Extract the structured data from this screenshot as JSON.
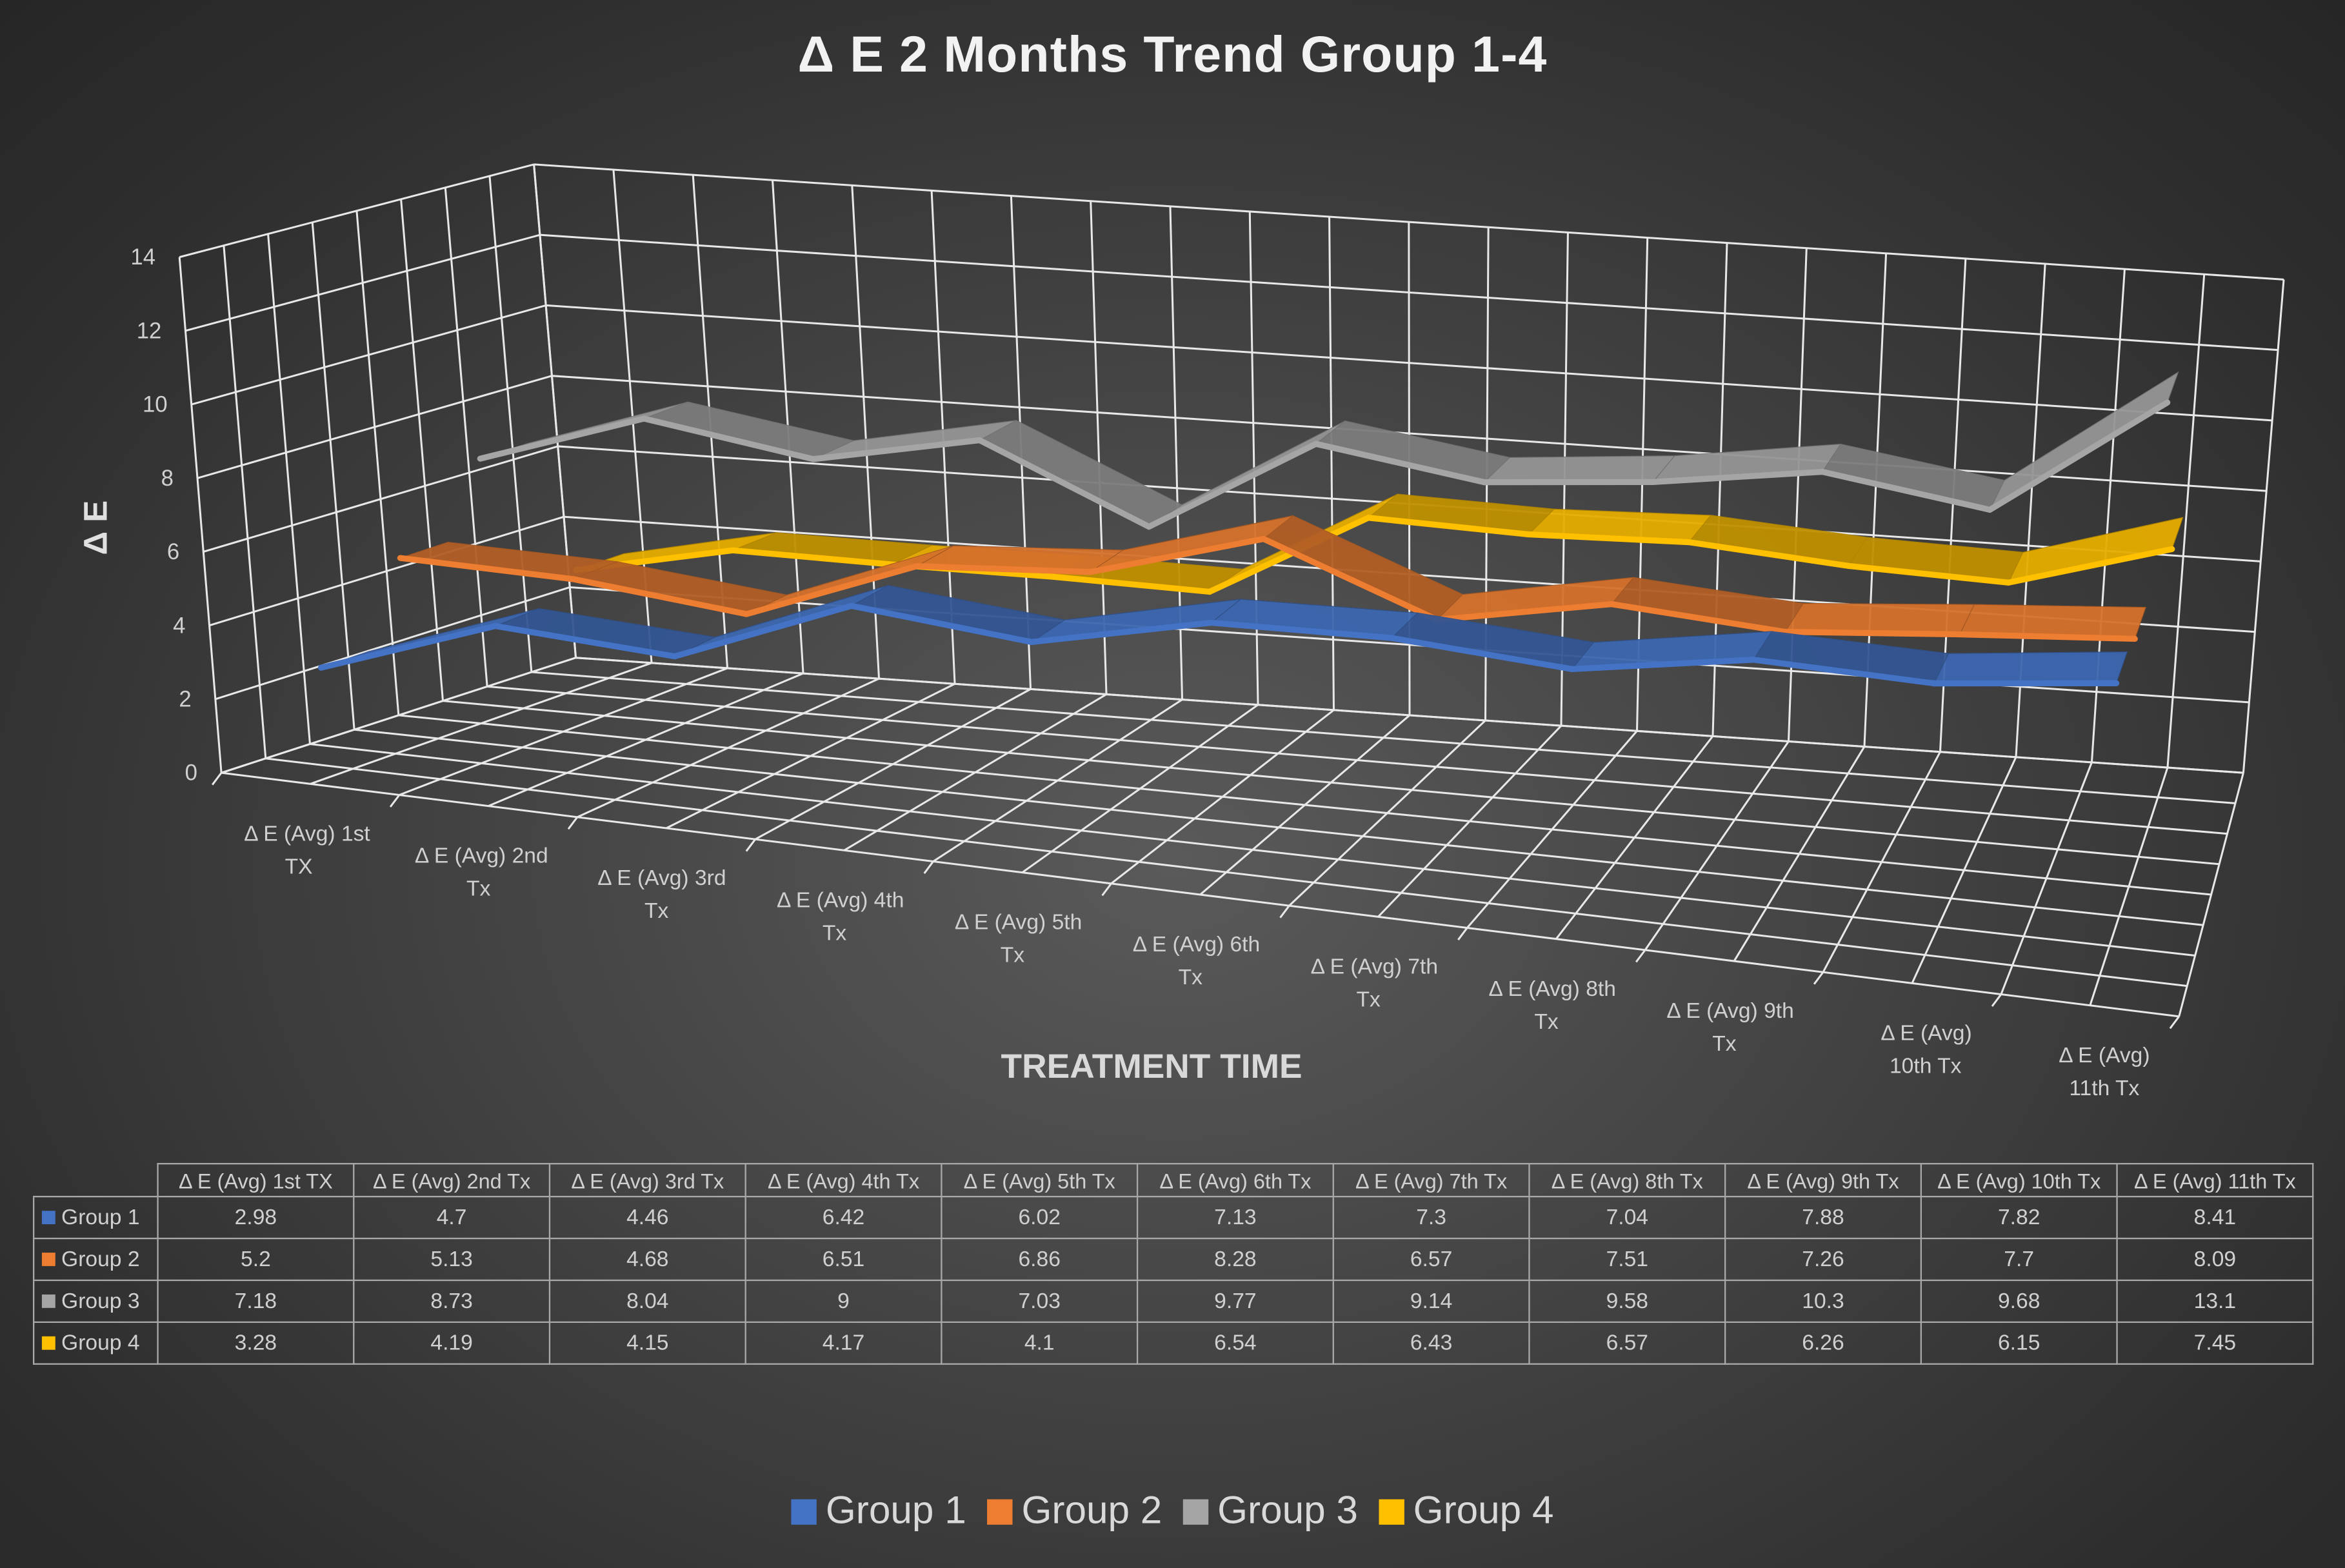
{
  "chart_data": {
    "type": "line",
    "subtype": "3d-line",
    "title": "Δ E 2 Months Trend Group 1-4",
    "xlabel": "TREATMENT TIME",
    "ylabel": "Δ E",
    "ylim": [
      0,
      14
    ],
    "yticks": [
      "0",
      "2",
      "4",
      "6",
      "8",
      "10",
      "12",
      "14"
    ],
    "grid": true,
    "legend_position": "bottom",
    "categories": [
      "Δ E (Avg) 1st  TX",
      "Δ E (Avg) 2nd Tx",
      "Δ E (Avg) 3rd Tx",
      "Δ E (Avg) 4th Tx",
      "Δ E (Avg) 5th Tx",
      "Δ E (Avg) 6th Tx",
      "Δ E (Avg) 7th Tx",
      "Δ E (Avg) 8th Tx",
      "Δ E (Avg) 9th Tx",
      "Δ E (Avg) 10th Tx",
      "Δ E (Avg) 11th Tx"
    ],
    "axis_labels": [
      [
        "Δ E (Avg) 1st",
        "TX"
      ],
      [
        "Δ E (Avg) 2nd",
        "Tx"
      ],
      [
        "Δ E (Avg) 3rd",
        "Tx"
      ],
      [
        "Δ E (Avg) 4th",
        "Tx"
      ],
      [
        "Δ E (Avg) 5th",
        "Tx"
      ],
      [
        "Δ E (Avg) 6th",
        "Tx"
      ],
      [
        "Δ E (Avg) 7th",
        "Tx"
      ],
      [
        "Δ E (Avg) 8th",
        "Tx"
      ],
      [
        "Δ E (Avg) 9th",
        "Tx"
      ],
      [
        "Δ E (Avg)",
        "10th Tx"
      ],
      [
        "Δ E (Avg)",
        "11th Tx"
      ]
    ],
    "series": [
      {
        "name": "Group 1",
        "color": "#4472c4",
        "values": [
          "2.98",
          "4.7",
          "4.46",
          "6.42",
          "6.02",
          "7.13",
          "7.3",
          "7.04",
          "7.88",
          "7.82",
          "8.41"
        ]
      },
      {
        "name": "Group 2",
        "color": "#ed7d31",
        "values": [
          "5.2",
          "5.13",
          "4.68",
          "6.51",
          "6.86",
          "8.28",
          "6.57",
          "7.51",
          "7.26",
          "7.7",
          "8.09"
        ]
      },
      {
        "name": "Group 3",
        "color": "#a5a5a5",
        "values": [
          "7.18",
          "8.73",
          "8.04",
          "9",
          "7.03",
          "9.77",
          "9.14",
          "9.58",
          "10.3",
          "9.68",
          "13.1"
        ]
      },
      {
        "name": "Group 4",
        "color": "#ffc000",
        "values": [
          "3.28",
          "4.19",
          "4.15",
          "4.17",
          "4.1",
          "6.54",
          "6.43",
          "6.57",
          "6.26",
          "6.15",
          "7.45"
        ]
      }
    ],
    "data_table": true
  }
}
